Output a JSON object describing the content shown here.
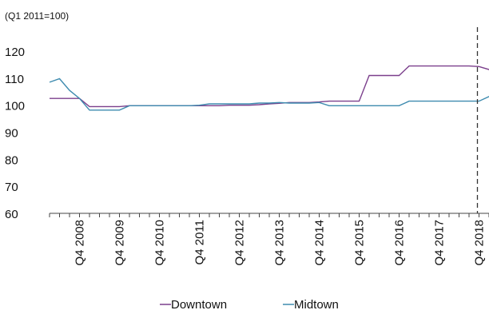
{
  "chart_data": {
    "type": "line",
    "title": "",
    "unit_note": "(Q1 2011=100)",
    "xlabel": "",
    "ylabel": "",
    "ylim": [
      60,
      120
    ],
    "yticks": [
      "60",
      "70",
      "80",
      "90",
      "100",
      "110",
      "120"
    ],
    "x_start": "Q1 2008",
    "x_end": "Q1 2019",
    "xticks": [
      "Q4 2008",
      "Q4 2009",
      "Q4 2010",
      "Q4 2011",
      "Q4 2012",
      "Q4 2013",
      "Q4 2014",
      "Q4 2015",
      "Q4 2016",
      "Q4 2017",
      "Q4 2018"
    ],
    "marker_line": "Q4 2018",
    "grid": false,
    "legend_position": "bottom",
    "series": [
      {
        "name": "Downtown",
        "color": "#7B3F8C",
        "values": [
          102.5,
          102.5,
          102.5,
          102.5,
          99.5,
          99.5,
          99.5,
          99.5,
          99.8,
          99.8,
          99.8,
          99.8,
          99.8,
          99.8,
          99.8,
          99.8,
          99.8,
          99.8,
          100.0,
          100.0,
          100.0,
          100.2,
          100.5,
          100.7,
          101.0,
          101.0,
          101.0,
          101.2,
          101.5,
          101.5,
          101.5,
          101.5,
          111.0,
          111.0,
          111.0,
          111.0,
          114.5,
          114.5,
          114.5,
          114.5,
          114.5,
          114.5,
          114.5,
          114.3,
          113.2,
          113.2,
          115.5,
          113.5,
          113.2,
          114.5,
          113.0,
          113.0,
          113.2
        ]
      },
      {
        "name": "Midtown",
        "color": "#3E8BAF",
        "values": [
          108.5,
          109.8,
          105.5,
          102.5,
          98.2,
          98.2,
          98.2,
          98.2,
          99.8,
          99.8,
          99.8,
          99.8,
          99.8,
          99.8,
          99.8,
          100.0,
          100.5,
          100.5,
          100.5,
          100.5,
          100.5,
          100.8,
          100.8,
          101.0,
          100.8,
          100.8,
          100.8,
          101.0,
          99.8,
          99.8,
          99.8,
          99.8,
          99.8,
          99.8,
          99.8,
          99.8,
          101.5,
          101.5,
          101.5,
          101.5,
          101.5,
          101.5,
          101.5,
          101.5,
          103.2,
          103.2,
          103.2,
          103.2,
          103.0,
          103.0,
          103.0,
          103.0,
          103.2
        ]
      }
    ]
  }
}
